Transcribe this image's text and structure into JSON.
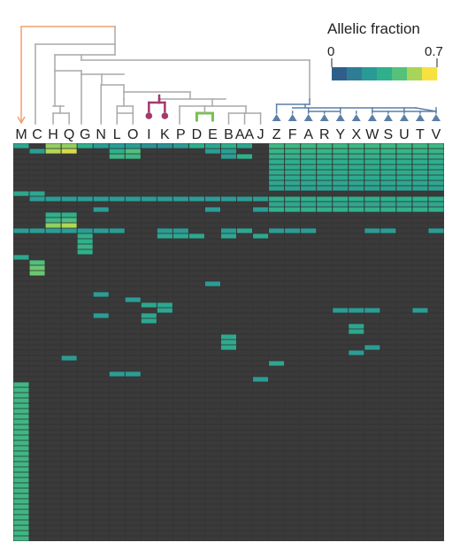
{
  "chart_data": {
    "type": "heatmap",
    "legend": {
      "title": "Allelic fraction",
      "min_label": "0",
      "max_label": "0.7",
      "vmin": 0,
      "vmax": 0.7,
      "colors": [
        "#2e5f8a",
        "#2f7d94",
        "#2a9a96",
        "#2fb08c",
        "#55c17a",
        "#a9d45a",
        "#f6e23f"
      ],
      "position": "top-right"
    },
    "colors": {
      "background": "#3a3a3a",
      "grid": "#2a2a2a",
      "tree": "#a9a9a9",
      "branch_M": "#f0a070",
      "branch_IK": "#a33a6e",
      "branch_PD": "#7abf55",
      "branch_clade": "#5a7fa8"
    },
    "columns": [
      "M",
      "C",
      "H",
      "Q",
      "G",
      "N",
      "L",
      "O",
      "I",
      "K",
      "P",
      "D",
      "E",
      "B",
      "AA",
      "J",
      "Z",
      "F",
      "A",
      "R",
      "Y",
      "X",
      "W",
      "S",
      "U",
      "T",
      "V"
    ],
    "num_rows": 75,
    "cells": [
      [
        0,
        0,
        0.3
      ],
      [
        2,
        0,
        0.55
      ],
      [
        3,
        0,
        0.55
      ],
      [
        4,
        0,
        0.35
      ],
      [
        5,
        0,
        0.25
      ],
      [
        6,
        0,
        0.25
      ],
      [
        7,
        0,
        0.25
      ],
      [
        8,
        0,
        0.2
      ],
      [
        9,
        0,
        0.2
      ],
      [
        10,
        0,
        0.25
      ],
      [
        11,
        0,
        0.35
      ],
      [
        12,
        0,
        0.3
      ],
      [
        13,
        0,
        0.35
      ],
      [
        14,
        0,
        0.3
      ],
      [
        16,
        0,
        0.4
      ],
      [
        17,
        0,
        0.4
      ],
      [
        18,
        0,
        0.4
      ],
      [
        19,
        0,
        0.4
      ],
      [
        20,
        0,
        0.4
      ],
      [
        21,
        0,
        0.4
      ],
      [
        22,
        0,
        0.4
      ],
      [
        23,
        0,
        0.4
      ],
      [
        24,
        0,
        0.4
      ],
      [
        25,
        0,
        0.4
      ],
      [
        26,
        0,
        0.4
      ],
      [
        1,
        1,
        0.25
      ],
      [
        2,
        1,
        0.6
      ],
      [
        3,
        1,
        0.65
      ],
      [
        6,
        1,
        0.35
      ],
      [
        7,
        1,
        0.45
      ],
      [
        12,
        1,
        0.25
      ],
      [
        13,
        1,
        0.25
      ],
      [
        16,
        1,
        0.38
      ],
      [
        17,
        1,
        0.38
      ],
      [
        18,
        1,
        0.38
      ],
      [
        19,
        1,
        0.38
      ],
      [
        20,
        1,
        0.38
      ],
      [
        21,
        1,
        0.38
      ],
      [
        22,
        1,
        0.38
      ],
      [
        23,
        1,
        0.38
      ],
      [
        24,
        1,
        0.38
      ],
      [
        25,
        1,
        0.38
      ],
      [
        26,
        1,
        0.38
      ],
      [
        6,
        2,
        0.4
      ],
      [
        7,
        2,
        0.4
      ],
      [
        13,
        2,
        0.25
      ],
      [
        14,
        2,
        0.35
      ],
      [
        16,
        2,
        0.36
      ],
      [
        17,
        2,
        0.36
      ],
      [
        18,
        2,
        0.36
      ],
      [
        19,
        2,
        0.36
      ],
      [
        20,
        2,
        0.36
      ],
      [
        21,
        2,
        0.36
      ],
      [
        22,
        2,
        0.36
      ],
      [
        23,
        2,
        0.36
      ],
      [
        24,
        2,
        0.36
      ],
      [
        25,
        2,
        0.36
      ],
      [
        26,
        2,
        0.36
      ],
      [
        16,
        3,
        0.34
      ],
      [
        17,
        3,
        0.34
      ],
      [
        18,
        3,
        0.34
      ],
      [
        19,
        3,
        0.34
      ],
      [
        20,
        3,
        0.34
      ],
      [
        21,
        3,
        0.34
      ],
      [
        22,
        3,
        0.34
      ],
      [
        23,
        3,
        0.34
      ],
      [
        24,
        3,
        0.34
      ],
      [
        25,
        3,
        0.34
      ],
      [
        26,
        3,
        0.34
      ],
      [
        16,
        4,
        0.33
      ],
      [
        17,
        4,
        0.33
      ],
      [
        18,
        4,
        0.33
      ],
      [
        19,
        4,
        0.33
      ],
      [
        20,
        4,
        0.33
      ],
      [
        21,
        4,
        0.33
      ],
      [
        22,
        4,
        0.33
      ],
      [
        23,
        4,
        0.33
      ],
      [
        24,
        4,
        0.33
      ],
      [
        25,
        4,
        0.33
      ],
      [
        26,
        4,
        0.33
      ],
      [
        16,
        5,
        0.33
      ],
      [
        17,
        5,
        0.33
      ],
      [
        18,
        5,
        0.33
      ],
      [
        19,
        5,
        0.33
      ],
      [
        20,
        5,
        0.33
      ],
      [
        21,
        5,
        0.33
      ],
      [
        22,
        5,
        0.33
      ],
      [
        23,
        5,
        0.33
      ],
      [
        24,
        5,
        0.33
      ],
      [
        25,
        5,
        0.33
      ],
      [
        26,
        5,
        0.33
      ],
      [
        16,
        6,
        0.32
      ],
      [
        17,
        6,
        0.32
      ],
      [
        18,
        6,
        0.32
      ],
      [
        19,
        6,
        0.32
      ],
      [
        20,
        6,
        0.32
      ],
      [
        21,
        6,
        0.32
      ],
      [
        22,
        6,
        0.32
      ],
      [
        23,
        6,
        0.32
      ],
      [
        24,
        6,
        0.32
      ],
      [
        25,
        6,
        0.32
      ],
      [
        26,
        6,
        0.32
      ],
      [
        16,
        7,
        0.3
      ],
      [
        17,
        7,
        0.3
      ],
      [
        18,
        7,
        0.3
      ],
      [
        19,
        7,
        0.3
      ],
      [
        20,
        7,
        0.3
      ],
      [
        21,
        7,
        0.3
      ],
      [
        22,
        7,
        0.3
      ],
      [
        23,
        7,
        0.3
      ],
      [
        24,
        7,
        0.3
      ],
      [
        25,
        7,
        0.3
      ],
      [
        26,
        7,
        0.3
      ],
      [
        16,
        8,
        0.28
      ],
      [
        17,
        8,
        0.28
      ],
      [
        18,
        8,
        0.28
      ],
      [
        19,
        8,
        0.28
      ],
      [
        20,
        8,
        0.28
      ],
      [
        21,
        8,
        0.28
      ],
      [
        22,
        8,
        0.28
      ],
      [
        23,
        8,
        0.28
      ],
      [
        24,
        8,
        0.28
      ],
      [
        25,
        8,
        0.28
      ],
      [
        26,
        8,
        0.28
      ],
      [
        0,
        9,
        0.3
      ],
      [
        1,
        9,
        0.3
      ],
      [
        1,
        10,
        0.25
      ],
      [
        2,
        10,
        0.25
      ],
      [
        3,
        10,
        0.25
      ],
      [
        4,
        10,
        0.25
      ],
      [
        5,
        10,
        0.25
      ],
      [
        6,
        10,
        0.25
      ],
      [
        7,
        10,
        0.25
      ],
      [
        8,
        10,
        0.25
      ],
      [
        9,
        10,
        0.25
      ],
      [
        10,
        10,
        0.25
      ],
      [
        11,
        10,
        0.25
      ],
      [
        12,
        10,
        0.25
      ],
      [
        13,
        10,
        0.25
      ],
      [
        14,
        10,
        0.25
      ],
      [
        15,
        10,
        0.25
      ],
      [
        16,
        10,
        0.35
      ],
      [
        17,
        10,
        0.35
      ],
      [
        18,
        10,
        0.35
      ],
      [
        19,
        10,
        0.35
      ],
      [
        20,
        10,
        0.35
      ],
      [
        21,
        10,
        0.35
      ],
      [
        22,
        10,
        0.35
      ],
      [
        23,
        10,
        0.35
      ],
      [
        24,
        10,
        0.35
      ],
      [
        25,
        10,
        0.35
      ],
      [
        26,
        10,
        0.35
      ],
      [
        16,
        11,
        0.3
      ],
      [
        17,
        11,
        0.3
      ],
      [
        18,
        11,
        0.3
      ],
      [
        19,
        11,
        0.3
      ],
      [
        20,
        11,
        0.3
      ],
      [
        21,
        11,
        0.3
      ],
      [
        22,
        11,
        0.3
      ],
      [
        23,
        11,
        0.3
      ],
      [
        24,
        11,
        0.3
      ],
      [
        25,
        11,
        0.3
      ],
      [
        26,
        11,
        0.3
      ],
      [
        5,
        12,
        0.25
      ],
      [
        12,
        12,
        0.25
      ],
      [
        15,
        12,
        0.25
      ],
      [
        16,
        12,
        0.36
      ],
      [
        17,
        12,
        0.36
      ],
      [
        18,
        12,
        0.36
      ],
      [
        19,
        12,
        0.36
      ],
      [
        20,
        12,
        0.36
      ],
      [
        21,
        12,
        0.36
      ],
      [
        22,
        12,
        0.36
      ],
      [
        23,
        12,
        0.36
      ],
      [
        24,
        12,
        0.36
      ],
      [
        25,
        12,
        0.36
      ],
      [
        26,
        12,
        0.36
      ],
      [
        2,
        13,
        0.35
      ],
      [
        3,
        13,
        0.35
      ],
      [
        2,
        14,
        0.4
      ],
      [
        3,
        14,
        0.45
      ],
      [
        2,
        15,
        0.55
      ],
      [
        3,
        15,
        0.6
      ],
      [
        0,
        16,
        0.25
      ],
      [
        1,
        16,
        0.25
      ],
      [
        2,
        16,
        0.25
      ],
      [
        3,
        16,
        0.25
      ],
      [
        4,
        16,
        0.25
      ],
      [
        5,
        16,
        0.25
      ],
      [
        6,
        16,
        0.25
      ],
      [
        9,
        16,
        0.25
      ],
      [
        10,
        16,
        0.25
      ],
      [
        13,
        16,
        0.25
      ],
      [
        14,
        16,
        0.3
      ],
      [
        16,
        16,
        0.25
      ],
      [
        17,
        16,
        0.25
      ],
      [
        18,
        16,
        0.25
      ],
      [
        22,
        16,
        0.25
      ],
      [
        23,
        16,
        0.25
      ],
      [
        26,
        16,
        0.25
      ],
      [
        4,
        17,
        0.35
      ],
      [
        9,
        17,
        0.3
      ],
      [
        10,
        17,
        0.3
      ],
      [
        11,
        17,
        0.3
      ],
      [
        13,
        17,
        0.3
      ],
      [
        15,
        17,
        0.3
      ],
      [
        4,
        18,
        0.35
      ],
      [
        4,
        19,
        0.38
      ],
      [
        4,
        20,
        0.35
      ],
      [
        0,
        21,
        0.3
      ],
      [
        1,
        22,
        0.45
      ],
      [
        1,
        23,
        0.5
      ],
      [
        1,
        24,
        0.5
      ],
      [
        12,
        26,
        0.25
      ],
      [
        5,
        28,
        0.25
      ],
      [
        7,
        29,
        0.25
      ],
      [
        8,
        30,
        0.3
      ],
      [
        9,
        30,
        0.3
      ],
      [
        9,
        31,
        0.3
      ],
      [
        20,
        31,
        0.25
      ],
      [
        21,
        31,
        0.25
      ],
      [
        22,
        31,
        0.25
      ],
      [
        25,
        31,
        0.25
      ],
      [
        8,
        32,
        0.3
      ],
      [
        5,
        32,
        0.25
      ],
      [
        8,
        33,
        0.3
      ],
      [
        21,
        34,
        0.3
      ],
      [
        21,
        35,
        0.3
      ],
      [
        13,
        36,
        0.32
      ],
      [
        13,
        37,
        0.32
      ],
      [
        13,
        38,
        0.32
      ],
      [
        22,
        38,
        0.25
      ],
      [
        21,
        39,
        0.25
      ],
      [
        3,
        40,
        0.25
      ],
      [
        16,
        41,
        0.3
      ],
      [
        6,
        43,
        0.25
      ],
      [
        7,
        43,
        0.25
      ],
      [
        15,
        44,
        0.25
      ],
      [
        0,
        45,
        0.4
      ],
      [
        0,
        46,
        0.4
      ],
      [
        0,
        47,
        0.4
      ],
      [
        0,
        48,
        0.4
      ],
      [
        0,
        49,
        0.4
      ],
      [
        0,
        50,
        0.4
      ],
      [
        0,
        51,
        0.4
      ],
      [
        0,
        52,
        0.4
      ],
      [
        0,
        53,
        0.4
      ],
      [
        0,
        54,
        0.4
      ],
      [
        0,
        55,
        0.4
      ],
      [
        0,
        56,
        0.4
      ],
      [
        0,
        57,
        0.4
      ],
      [
        0,
        58,
        0.4
      ],
      [
        0,
        59,
        0.4
      ],
      [
        0,
        60,
        0.4
      ],
      [
        0,
        61,
        0.4
      ],
      [
        0,
        62,
        0.4
      ],
      [
        0,
        63,
        0.4
      ],
      [
        0,
        64,
        0.4
      ],
      [
        0,
        65,
        0.4
      ],
      [
        0,
        66,
        0.4
      ],
      [
        0,
        67,
        0.4
      ],
      [
        0,
        68,
        0.4
      ],
      [
        0,
        69,
        0.4
      ],
      [
        0,
        70,
        0.4
      ],
      [
        0,
        71,
        0.4
      ],
      [
        0,
        72,
        0.4
      ],
      [
        0,
        73,
        0.4
      ],
      [
        0,
        74,
        0.4
      ]
    ]
  }
}
